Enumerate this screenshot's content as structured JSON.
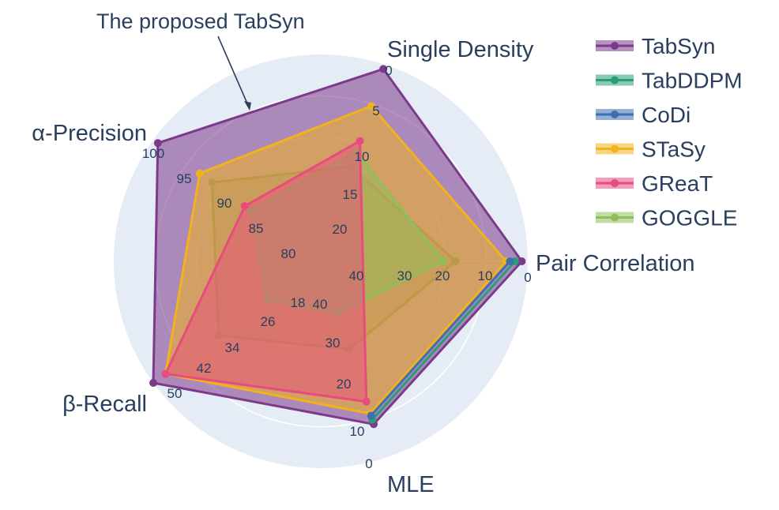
{
  "chart_data": {
    "type": "radar",
    "annotation": "The proposed TabSyn",
    "axes": [
      {
        "label": "Single Density",
        "ticks": [
          0,
          5,
          10,
          15,
          20
        ],
        "reversed": true
      },
      {
        "label": "Pair Correlation",
        "ticks": [
          0,
          10,
          20,
          30,
          40
        ],
        "reversed": true
      },
      {
        "label": "MLE",
        "ticks": [
          0,
          10,
          20,
          30,
          40
        ],
        "reversed": true
      },
      {
        "label": "β-Recall",
        "ticks": [
          50,
          42,
          34,
          26,
          18
        ],
        "reversed": false
      },
      {
        "label": "α-Precision",
        "ticks": [
          100,
          95,
          90,
          85,
          80
        ],
        "reversed": false
      }
    ],
    "series": [
      {
        "name": "TabSyn",
        "color": "#7b3a8a",
        "fill_opacity": 0.55,
        "values": {
          "Single Density": 0.6,
          "Pair Correlation": 1.4,
          "MLE": 8.4,
          "β-Recall": 50.0,
          "α-Precision": 99.3
        }
      },
      {
        "name": "TabDDPM",
        "color": "#2a9d78",
        "fill_opacity": 0.45,
        "values": {
          "Single Density": null,
          "Pair Correlation": 3.0,
          "MLE": 9.5,
          "β-Recall": null,
          "α-Precision": null
        }
      },
      {
        "name": "CoDi",
        "color": "#3f6fb0",
        "fill_opacity": 0.45,
        "values": {
          "Single Density": null,
          "Pair Correlation": 4.2,
          "MLE": 10.5,
          "β-Recall": null,
          "α-Precision": null
        }
      },
      {
        "name": "STaSy",
        "color": "#f2b21e",
        "fill_opacity": 0.55,
        "values": {
          "Single Density": 5.7,
          "Pair Correlation": 5.1,
          "MLE": 11.0,
          "β-Recall": 47.0,
          "α-Precision": 92.9
        }
      },
      {
        "name": "GReaT",
        "color": "#e84b7e",
        "fill_opacity": 0.5,
        "values": {
          "Single Density": 10.5,
          "Pair Correlation": null,
          "MLE": 14.0,
          "β-Recall": 47.0,
          "α-Precision": 86.0
        }
      },
      {
        "name": "GOGGLE",
        "color": "#8fbf5a",
        "fill_opacity": 0.5,
        "values": {
          "Single Density": 12.0,
          "Pair Correlation": 20.0,
          "MLE": 36.0,
          "β-Recall": 22.0,
          "α-Precision": 85.0
        }
      }
    ],
    "extra_polygon_color": "#7a7a7a",
    "extra_polygon": {
      "Single Density": 14.0,
      "Pair Correlation": 17.0,
      "MLE": 27.0,
      "β-Recall": 34.0,
      "α-Precision": 91.0
    }
  }
}
